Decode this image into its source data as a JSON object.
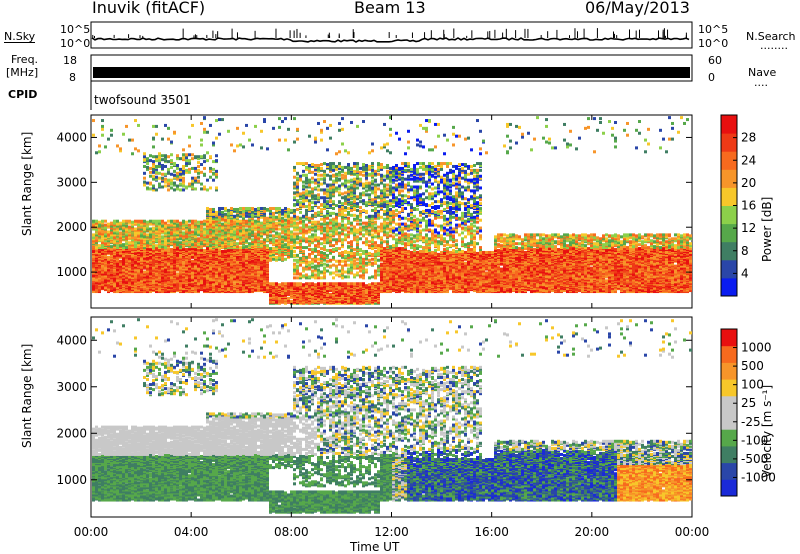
{
  "header": {
    "station": "Inuvik (fitACF)",
    "beam": "Beam 13",
    "date": "06/May/2013"
  },
  "top_panels": {
    "nsky_label": "N.Sky",
    "nsearch_label": "N.Search",
    "nsearch_dots": "........",
    "left_ticks": [
      "10^5",
      "10^0"
    ],
    "right_ticks": [
      "10^5",
      "10^0"
    ],
    "freq_label": "Freq.",
    "freq_unit": "[MHz]",
    "freq_ticks": [
      "18",
      "8"
    ],
    "nave_label": "Nave",
    "nave_dots": "....",
    "nave_ticks": [
      "60",
      "0"
    ],
    "cpid_label": "CPID",
    "cpid_value": "twofsound 3501"
  },
  "colors": {
    "power": [
      "#0a1cf0",
      "#2a46a8",
      "#3f7e63",
      "#56a84a",
      "#8cd04a",
      "#f7c72a",
      "#f7952a",
      "#f76a1e",
      "#ee3a16",
      "#e81010"
    ],
    "velocity": [
      "#e81010",
      "#f76a1e",
      "#f7952a",
      "#f7c72a",
      "#c8c8c8",
      "#c8c8c8",
      "#56a84a",
      "#3f7e63",
      "#2a46a8",
      "#1a2ad8"
    ]
  },
  "chart_data": [
    {
      "type": "heatmap",
      "name": "power",
      "title": "",
      "xlabel": "",
      "ylabel": "Slant Range [km]",
      "y_ticks": [
        "1000",
        "2000",
        "3000",
        "4000"
      ],
      "ylim": [
        200,
        4500
      ],
      "xlim": [
        "00:00",
        "24:00"
      ],
      "colorbar": {
        "label": "Power [dB]",
        "ticks": [
          "28",
          "24",
          "20",
          "16",
          "12",
          "8",
          "4"
        ],
        "range": [
          0,
          32
        ]
      },
      "data_description_levels_db": {
        "band_1000km": 28,
        "band_1800km": 16,
        "upper_scatter_3000km": 12
      }
    },
    {
      "type": "heatmap",
      "name": "velocity",
      "title": "",
      "xlabel": "Time UT",
      "ylabel": "Slant Range [km]",
      "x_ticks": [
        "00:00",
        "04:00",
        "08:00",
        "12:00",
        "16:00",
        "20:00",
        "00:00"
      ],
      "y_ticks": [
        "1000",
        "2000",
        "3000",
        "4000"
      ],
      "ylim": [
        200,
        4500
      ],
      "xlim": [
        "00:00",
        "24:00"
      ],
      "colorbar": {
        "label": "Velocity [m s⁻¹]",
        "ticks": [
          "1000",
          "500",
          "100",
          "25",
          "-25",
          "-100",
          "-500",
          "-1000"
        ],
        "range": [
          -1000,
          1000
        ]
      }
    }
  ]
}
